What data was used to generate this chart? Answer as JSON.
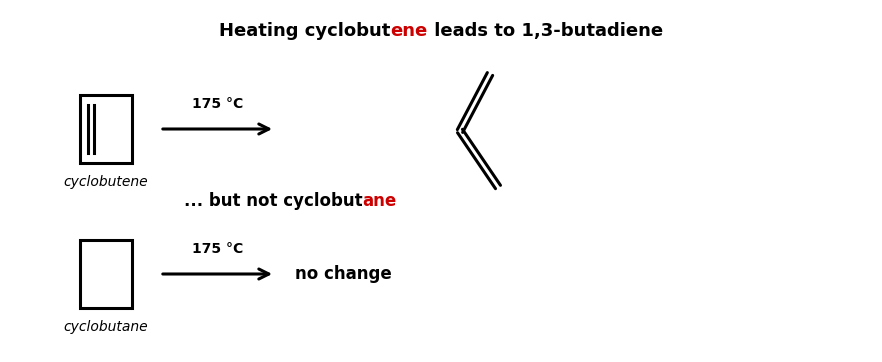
{
  "title_parts": [
    {
      "text": "Heating cyclobut",
      "color": "#000000"
    },
    {
      "text": "ene",
      "color": "#cc0000"
    },
    {
      "text": " leads to 1,3-butadiene",
      "color": "#000000"
    }
  ],
  "subtitle_parts": [
    {
      "text": "... but not cyclobut",
      "color": "#000000"
    },
    {
      "text": "ane",
      "color": "#cc0000"
    }
  ],
  "arrow_label": "175 °C",
  "label1": "cyclobutene",
  "label2": "cyclobutane",
  "no_change_text": "no change",
  "bg_color": "#ffffff",
  "line_color": "#000000",
  "line_width": 2.2,
  "title_fontsize": 13,
  "subtitle_fontsize": 12,
  "label_fontsize": 10,
  "arrow_fontsize": 10,
  "nochange_fontsize": 12
}
